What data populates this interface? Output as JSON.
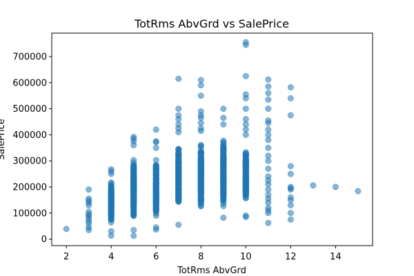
{
  "chart_data": {
    "type": "scatter",
    "title": "TotRms AbvGrd vs SalePrice",
    "xlabel": "TotRms AbvGrd",
    "ylabel": "SalePrice",
    "xlim": [
      1.35,
      15.65
    ],
    "ylim": [
      -25000,
      790000
    ],
    "xticks": [
      2,
      4,
      6,
      8,
      10,
      12,
      14
    ],
    "yticks": [
      0,
      100000,
      200000,
      300000,
      400000,
      500000,
      600000,
      700000
    ],
    "grid": false,
    "legend": "none",
    "marker_color": "#1f77b4",
    "marker_alpha": 0.55,
    "series": [
      {
        "columns": [
          {
            "x": 2,
            "range": null,
            "extras": [
              39000
            ]
          },
          {
            "x": 3,
            "range": null,
            "extras": [
              35000,
              45000,
              60000,
              70000,
              80000,
              90000,
              95000,
              105000,
              130000,
              140000,
              148000,
              155000,
              190000
            ]
          },
          {
            "x": 4,
            "range": [
              40000,
              240000
            ],
            "extras": [
              13000,
              30000,
              250000,
              260000,
              268000
            ]
          },
          {
            "x": 5,
            "range": [
              50000,
              340000
            ],
            "extras": [
              13000,
              35000,
              360000,
              375000,
              385000,
              392000
            ]
          },
          {
            "x": 6,
            "range": [
              60000,
              330000
            ],
            "extras": [
              37000,
              45000,
              350000,
              372000,
              375000,
              420000
            ]
          },
          {
            "x": 7,
            "range": [
              80000,
              390000
            ],
            "extras": [
              55000,
              410000,
              425000,
              440000,
              460000,
              475000,
              500000,
              615000
            ]
          },
          {
            "x": 8,
            "range": [
              80000,
              400000
            ],
            "extras": [
              415000,
              425000,
              445000,
              465000,
              475000,
              490000,
              550000,
              590000,
              610000
            ]
          },
          {
            "x": 9,
            "range": [
              90000,
              420000
            ],
            "extras": [
              82000,
              440000,
              465000,
              500000
            ]
          },
          {
            "x": 10,
            "range": [
              110000,
              380000
            ],
            "extras": [
              85000,
              90000,
              400000,
              420000,
              440000,
              460000,
              500000,
              540000,
              555000,
              625000,
              745000,
              755000
            ]
          },
          {
            "x": 11,
            "range": null,
            "extras": [
              62000,
              100000,
              110000,
              120000,
              140000,
              155000,
              170000,
              190000,
              210000,
              225000,
              240000,
              270000,
              300000,
              320000,
              350000,
              380000,
              400000,
              420000,
              445000,
              455000,
              500000,
              535000,
              560000,
              585000,
              612000
            ]
          },
          {
            "x": 12,
            "range": null,
            "extras": [
              75000,
              100000,
              130000,
              150000,
              160000,
              190000,
              195000,
              200000,
              250000,
              280000,
              475000,
              540000,
              582000
            ]
          },
          {
            "x": 13,
            "range": null,
            "extras": [
              206000
            ]
          },
          {
            "x": 14,
            "range": null,
            "extras": [
              200000
            ]
          },
          {
            "x": 15,
            "range": null,
            "extras": [
              184000
            ]
          }
        ]
      }
    ]
  }
}
